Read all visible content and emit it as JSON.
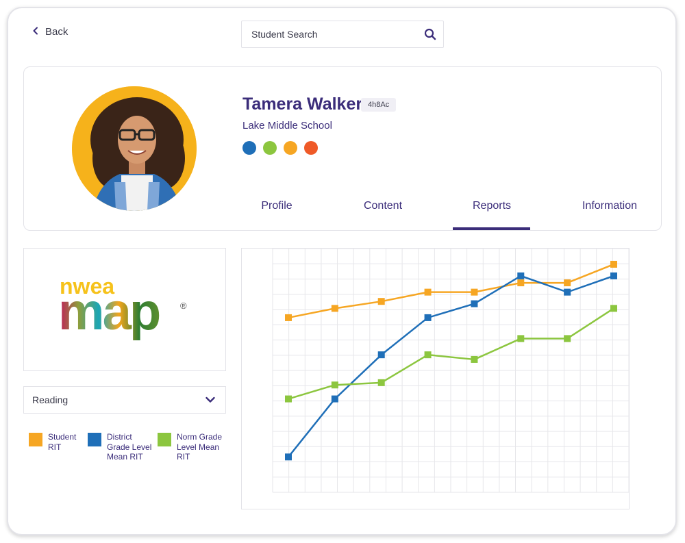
{
  "nav": {
    "back_label": "Back"
  },
  "search": {
    "placeholder": "Student Search",
    "value": ""
  },
  "student": {
    "name": "Tamera Walker",
    "id_badge": "4h8Ac",
    "school": "Lake Middle School",
    "status_dots": [
      {
        "color": "#1f6fb8"
      },
      {
        "color": "#8cc63f"
      },
      {
        "color": "#f6a623"
      },
      {
        "color": "#ef5a28"
      }
    ]
  },
  "tabs": [
    {
      "label": "Profile",
      "active": false
    },
    {
      "label": "Content",
      "active": false
    },
    {
      "label": "Reports",
      "active": true
    },
    {
      "label": "Information",
      "active": false
    }
  ],
  "logo": {
    "top_text": "nwea",
    "main_text": "map",
    "registered": "®"
  },
  "subject": {
    "selected": "Reading"
  },
  "legend": [
    {
      "label": "Student RIT",
      "color": "#f6a623"
    },
    {
      "label": "District Grade Level Mean RIT",
      "color": "#1f6fb8"
    },
    {
      "label": "Norm Grade Level Mean RIT",
      "color": "#8cc63f"
    }
  ],
  "colors": {
    "primary": "#3b2d7a",
    "orange": "#f6a623",
    "blue": "#1f6fb8",
    "green": "#8cc63f",
    "red": "#ef5a28"
  },
  "chart_data": {
    "type": "line",
    "x": [
      1,
      2,
      3,
      4,
      5,
      6,
      7,
      8
    ],
    "ylim": [
      0,
      100
    ],
    "grid": true,
    "series": [
      {
        "name": "Student RIT",
        "color": "#f6a623",
        "values": [
          72,
          76,
          79,
          83,
          83,
          87,
          87,
          95
        ]
      },
      {
        "name": "District Grade Level Mean RIT",
        "color": "#1f6fb8",
        "values": [
          12,
          37,
          56,
          72,
          78,
          90,
          83,
          90
        ]
      },
      {
        "name": "Norm Grade Level Mean RIT",
        "color": "#8cc63f",
        "values": [
          37,
          43,
          44,
          56,
          54,
          63,
          63,
          76
        ]
      }
    ]
  }
}
